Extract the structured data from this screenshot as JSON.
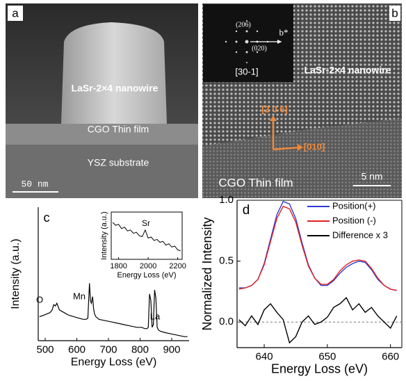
{
  "panels": {
    "a": {
      "letter": "a",
      "wire": "LaSr-2×4 nanowire",
      "film": "CGO Thin film",
      "substrate": "YSZ substrate",
      "scale": "50 nm"
    },
    "b": {
      "letter": "b",
      "wire": "LaSr-2×4 nanowire",
      "film": "CGO Thin film",
      "scale": "5 nm",
      "dir1": "[2 0 6]",
      "dir2": "[010]",
      "spot1": "(206)",
      "spot2": "(020)",
      "recip": "b*",
      "zone": "[30-1]"
    }
  },
  "chart_data": [
    {
      "type": "line",
      "letter": "c",
      "ylabel": "Intensity (a.u.)",
      "xlabel": "Energy Loss (eV)",
      "color": "#000000",
      "x": [
        482,
        495,
        505,
        515,
        522,
        527,
        532,
        537,
        545,
        560,
        575,
        590,
        605,
        620,
        630,
        635,
        640,
        643,
        646,
        650,
        653,
        656,
        660,
        670,
        690,
        710,
        730,
        750,
        770,
        790,
        805,
        815,
        822,
        826,
        830,
        834,
        838,
        842,
        846,
        850,
        854,
        858,
        865,
        880,
        900,
        920,
        940,
        950
      ],
      "values": [
        18,
        19,
        20,
        21,
        23,
        27,
        26,
        28,
        23,
        21,
        19,
        18,
        17,
        16,
        16,
        17,
        43,
        30,
        28,
        33,
        24,
        20,
        18,
        16,
        15,
        14,
        13,
        12,
        11,
        10,
        10,
        9,
        9,
        10,
        35,
        30,
        10,
        12,
        38,
        32,
        10,
        8,
        7,
        6,
        5,
        4,
        3,
        3
      ],
      "xlim": [
        478,
        955
      ],
      "ylim": [
        0,
        100
      ],
      "xticks": [
        500,
        600,
        700,
        800,
        900
      ],
      "annotations": [
        "O",
        "Mn",
        "La"
      ],
      "inset": {
        "ylabel": "Intensity (a.u.)",
        "xlabel": "Energy Loss (eV)",
        "annotations": [
          "Sr"
        ],
        "x": [
          1760,
          1780,
          1800,
          1820,
          1840,
          1860,
          1880,
          1900,
          1920,
          1940,
          1960,
          1980,
          2000,
          2020,
          2040,
          2060,
          2080,
          2100,
          2120,
          2140,
          2160,
          2180,
          2200,
          2220
        ],
        "values": [
          78,
          72,
          74,
          65,
          68,
          60,
          62,
          55,
          57,
          50,
          48,
          62,
          45,
          47,
          40,
          42,
          36,
          38,
          30,
          33,
          26,
          28,
          20,
          18
        ],
        "xlim": [
          1750,
          2230
        ],
        "ylim": [
          0,
          100
        ],
        "xticks": [
          1800,
          2000,
          2200
        ]
      }
    },
    {
      "type": "line",
      "letter": "d",
      "ylabel": "Normalized Intensity",
      "xlabel": "Energy Loss (eV)",
      "zero_line": true,
      "x": [
        636,
        637,
        638,
        639,
        640,
        641,
        642,
        643,
        644,
        645,
        646,
        647,
        648,
        649,
        650,
        651,
        652,
        653,
        654,
        655,
        656,
        657,
        658,
        659,
        660,
        661
      ],
      "series": [
        {
          "name": "Position(+)",
          "color": "#2a3bd6",
          "values": [
            0.28,
            0.28,
            0.3,
            0.35,
            0.48,
            0.68,
            0.88,
            0.99,
            0.97,
            0.85,
            0.65,
            0.47,
            0.36,
            0.3,
            0.3,
            0.34,
            0.4,
            0.45,
            0.48,
            0.5,
            0.49,
            0.43,
            0.35,
            0.3,
            0.27,
            0.26
          ]
        },
        {
          "name": "Position (-)",
          "color": "#e02020",
          "values": [
            0.27,
            0.28,
            0.3,
            0.35,
            0.47,
            0.66,
            0.85,
            0.95,
            0.93,
            0.82,
            0.63,
            0.46,
            0.36,
            0.31,
            0.31,
            0.35,
            0.42,
            0.47,
            0.5,
            0.51,
            0.5,
            0.44,
            0.36,
            0.3,
            0.27,
            0.26
          ]
        },
        {
          "name": "Difference x 3",
          "color": "#000000",
          "values": [
            0.02,
            -0.03,
            0.05,
            -0.02,
            0.1,
            0.15,
            0.08,
            0.02,
            -0.17,
            -0.12,
            0.0,
            0.05,
            -0.02,
            0.0,
            0.04,
            0.12,
            0.15,
            0.2,
            0.1,
            0.15,
            0.08,
            0.12,
            0.05,
            0.0,
            -0.05,
            0.05
          ]
        }
      ],
      "xlim": [
        635.7,
        661.8
      ],
      "ylim": [
        -0.21,
        1.0
      ],
      "xticks": [
        640,
        650,
        660
      ],
      "yticks": [
        {
          "value": 0,
          "label": "0.0"
        },
        0.5,
        {
          "value": 1,
          "label": "1.0"
        }
      ]
    }
  ]
}
